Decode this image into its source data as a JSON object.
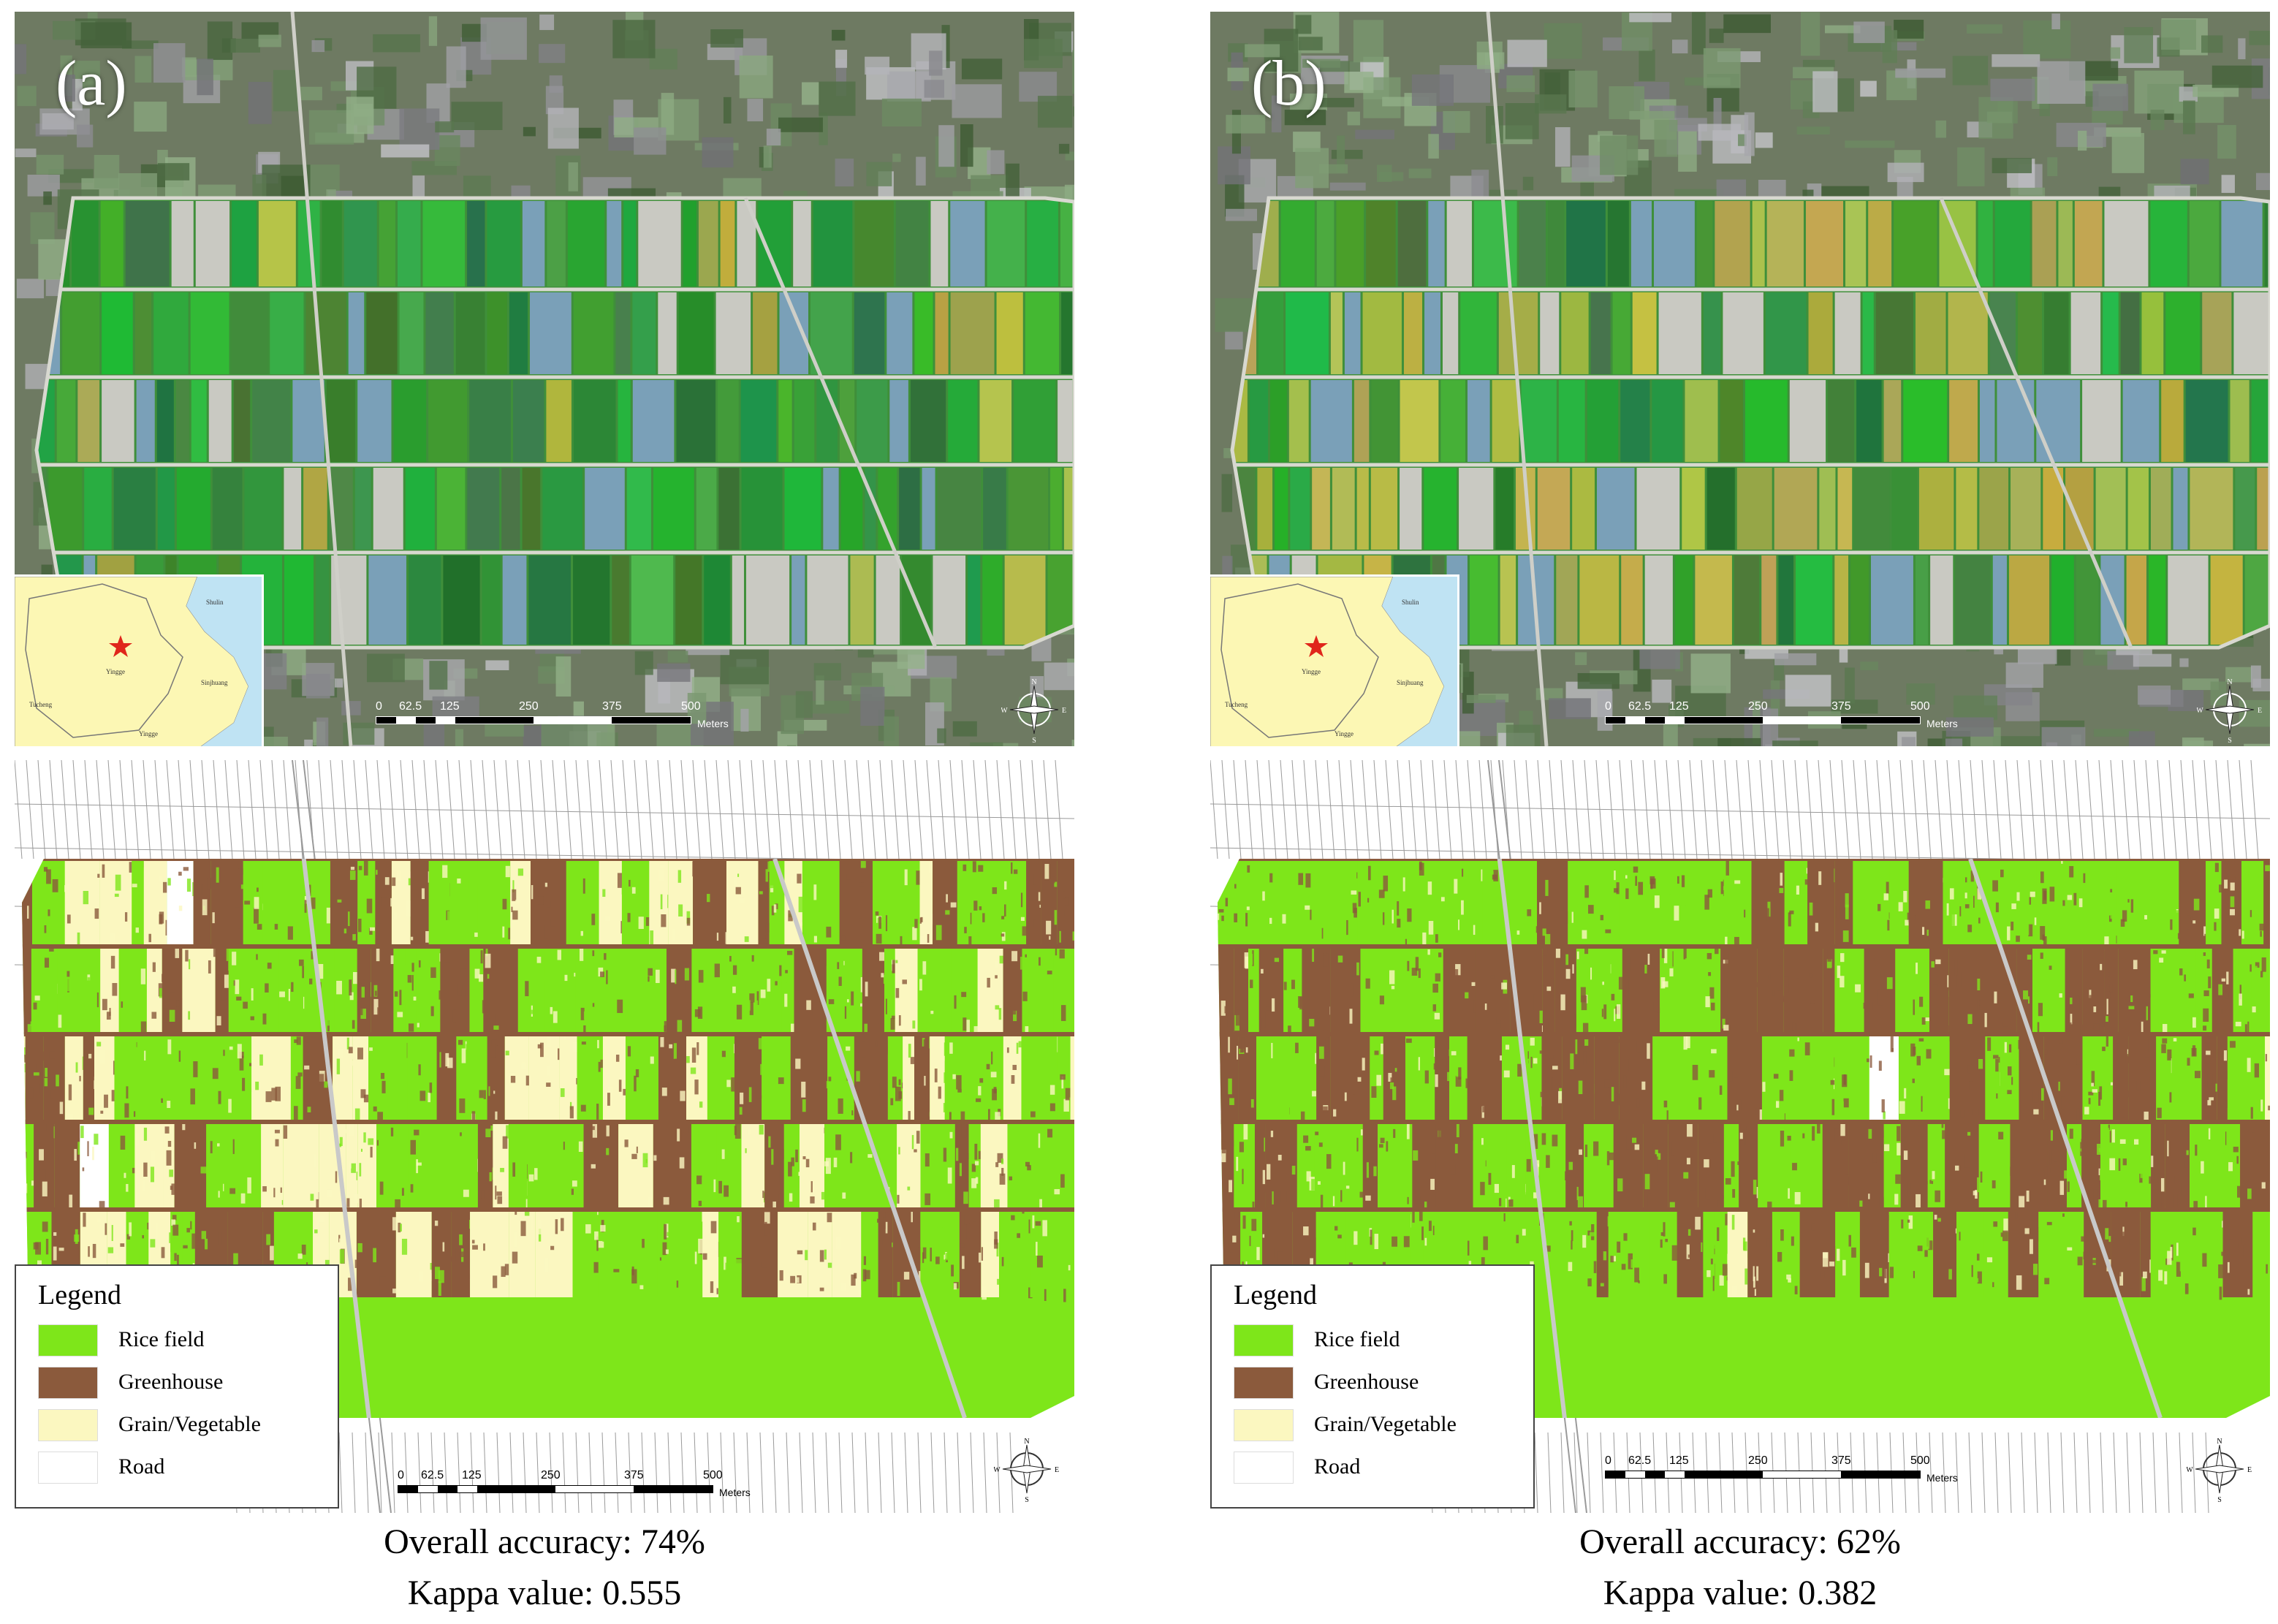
{
  "panels": [
    {
      "id": "a",
      "label": "(a)",
      "accuracy_text": "Overall accuracy: 74%",
      "kappa_text": "Kappa value: 0.555",
      "overall_accuracy_pct": 74,
      "kappa": 0.555
    },
    {
      "id": "b",
      "label": "(b)",
      "accuracy_text": "Overall accuracy: 62%",
      "kappa_text": "Kappa value: 0.382",
      "overall_accuracy_pct": 62,
      "kappa": 0.382
    }
  ],
  "scale_bar": {
    "ticks": [
      "0",
      "62.5",
      "125",
      "250",
      "375",
      "500"
    ],
    "units": "Meters"
  },
  "compass": {
    "n": "N",
    "s": "S",
    "e": "E",
    "w": "W"
  },
  "inset_labels": [
    "Shulin",
    "Sinjhuang",
    "Yingge",
    "Tucheng",
    "Yingge"
  ],
  "legend": {
    "title": "Legend",
    "items": [
      {
        "label": "Rice field",
        "color": "#7ee61a"
      },
      {
        "label": "Greenhouse",
        "color": "#8b5a3c"
      },
      {
        "label": "Grain/Vegetable",
        "color": "#fbf7c0"
      },
      {
        "label": "Road",
        "color": "#ffffff"
      }
    ]
  },
  "colors": {
    "rice_field": "#7ee61a",
    "greenhouse": "#8b5a3c",
    "grain_vegetable": "#fbf7c0",
    "road": "#ffffff",
    "inset_land": "#fcf7b4",
    "inset_water": "#bfe3f3",
    "inset_marker": "#e0261b"
  }
}
